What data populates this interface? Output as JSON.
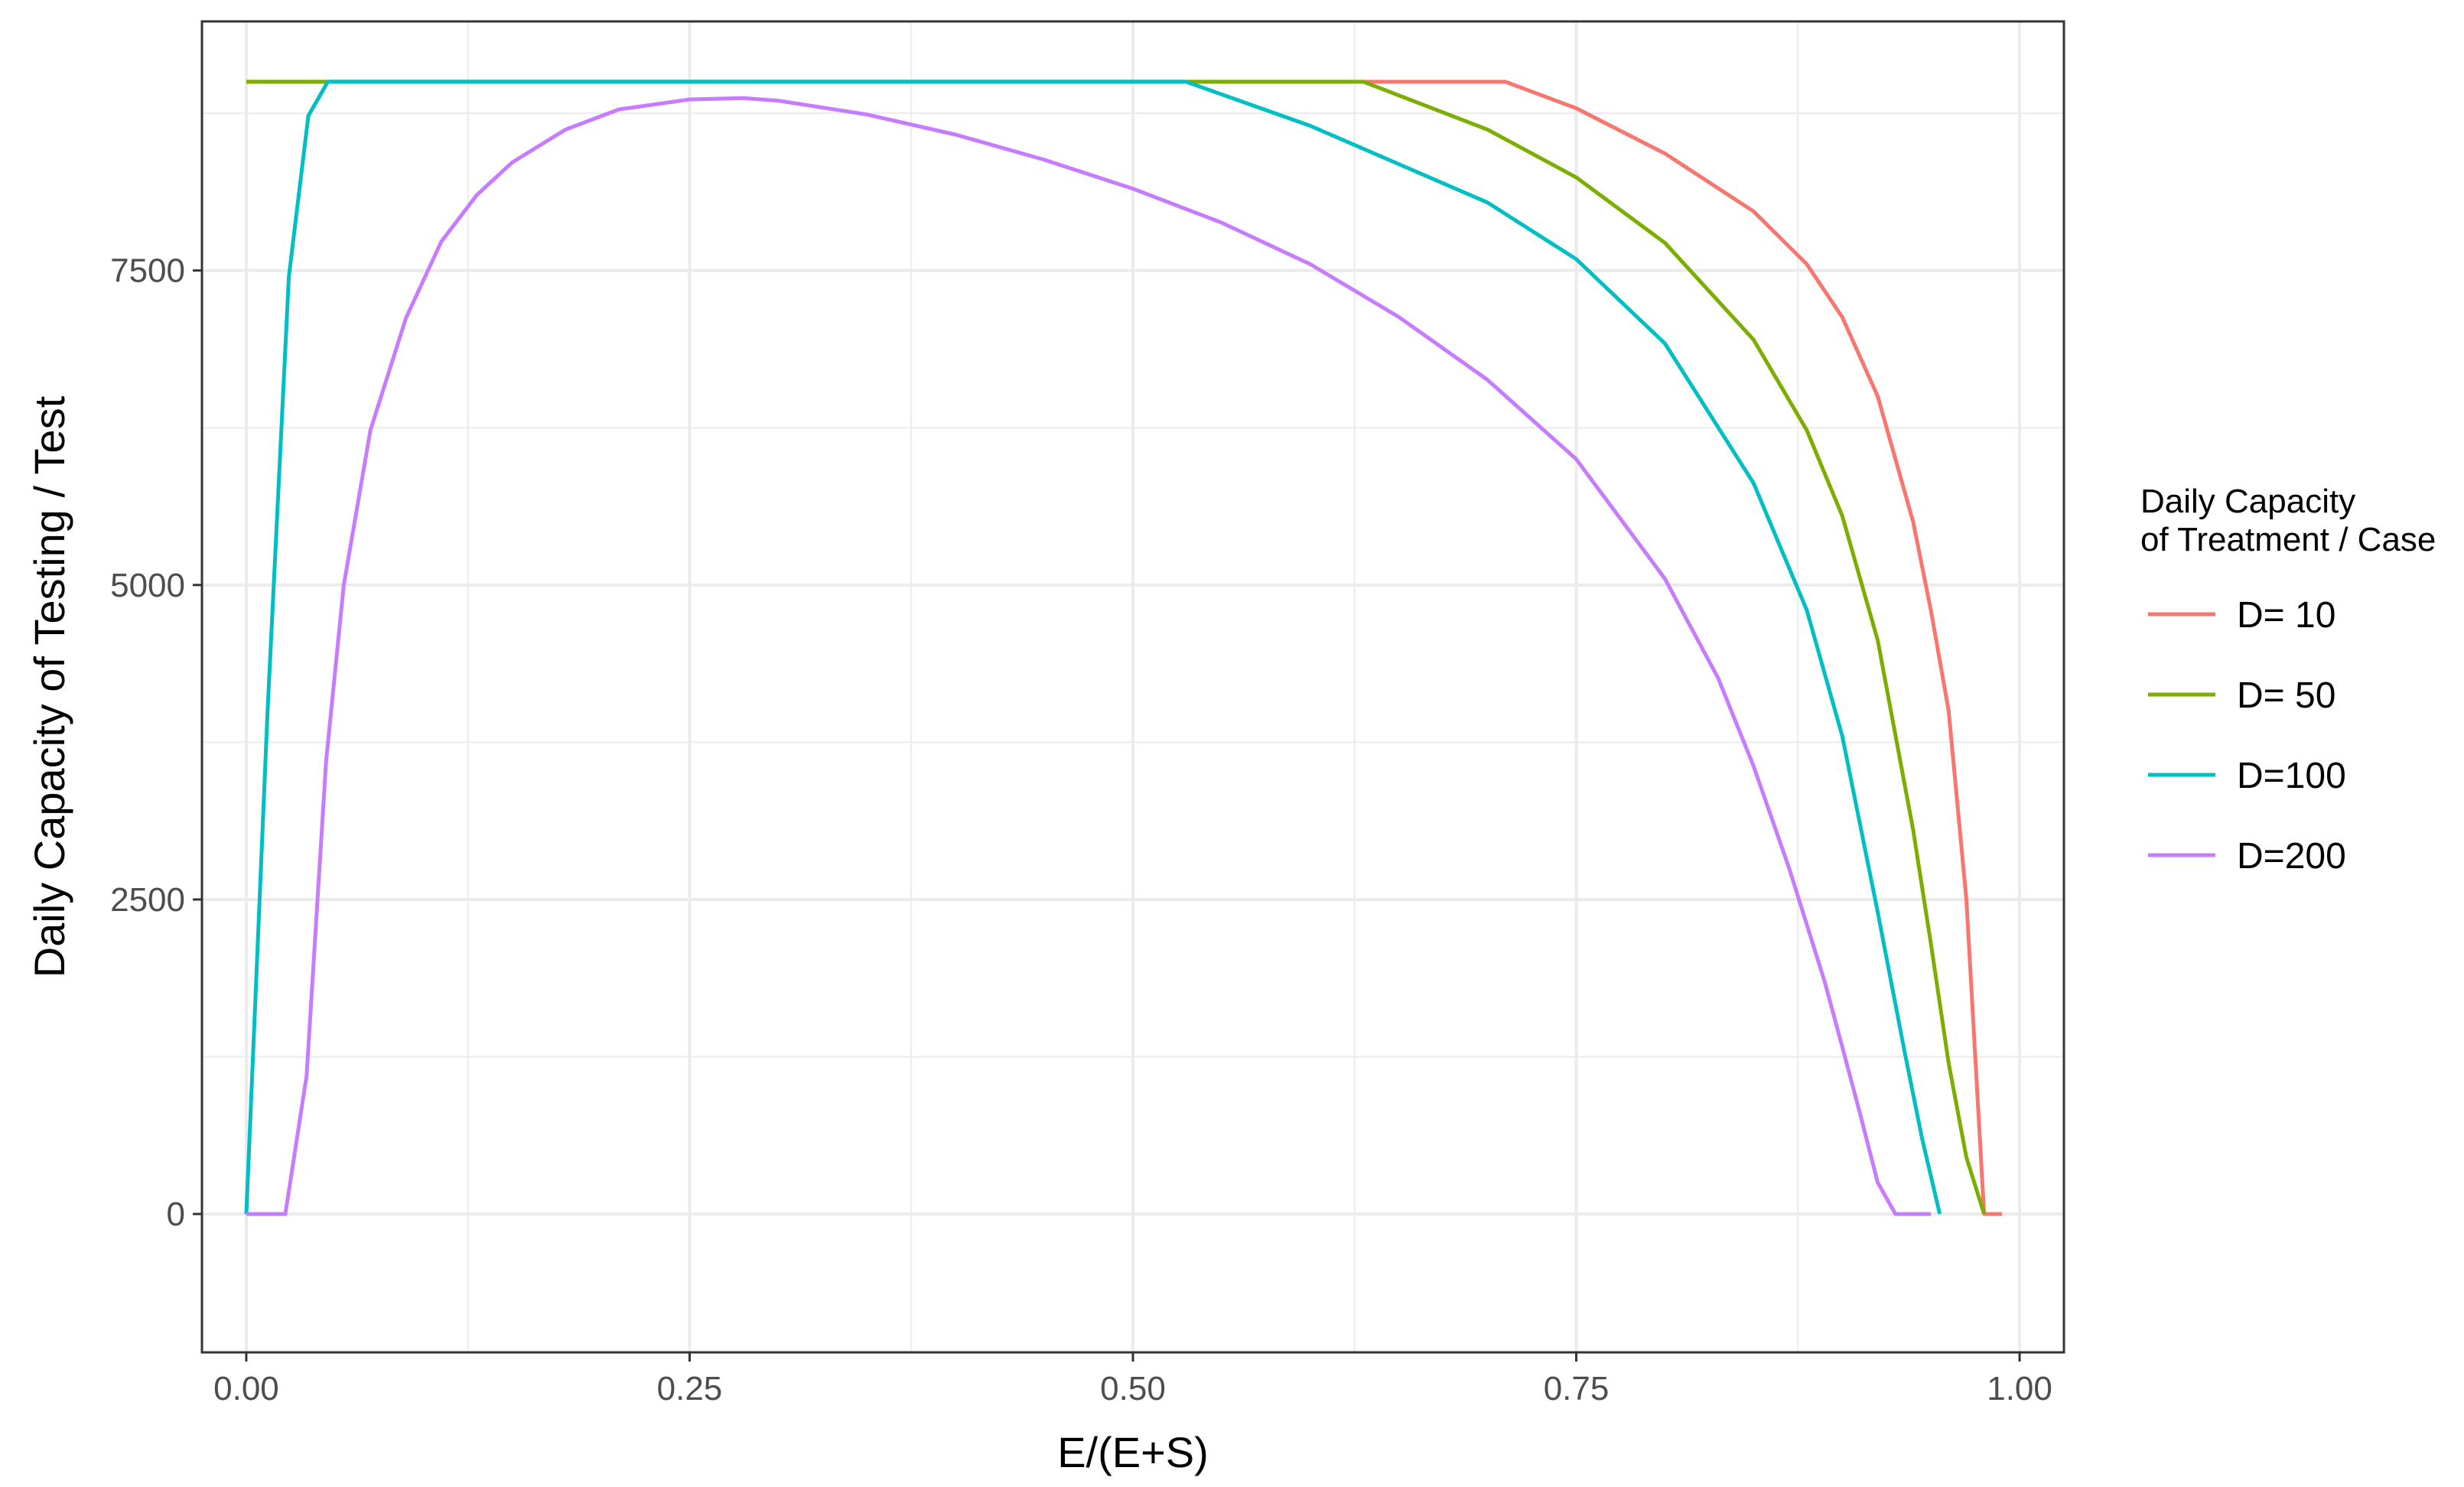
{
  "chart_data": {
    "type": "line",
    "title": "",
    "xlabel": "E/(E+S)",
    "ylabel": "Daily Capacity of Testing / Test",
    "xlim": [
      -0.025,
      1.025
    ],
    "ylim": [
      -1100,
      9480
    ],
    "x_ticks": [
      0,
      0.25,
      0.5,
      0.75,
      1
    ],
    "x_tick_labels": [
      "0.00",
      "0.25",
      "0.50",
      "0.75",
      "1.00"
    ],
    "y_ticks": [
      0,
      2500,
      5000,
      7500
    ],
    "y_tick_labels": [
      "0",
      "2500",
      "5000",
      "7500"
    ],
    "grid": true,
    "legend": {
      "title_lines": [
        "Daily Capacity",
        "of Treatment / Case"
      ],
      "placement": "right"
    },
    "series": [
      {
        "name": "D= 10",
        "color": "#f8766d",
        "x": [
          0,
          0.71,
          0.75,
          0.8,
          0.85,
          0.88,
          0.9,
          0.92,
          0.94,
          0.95,
          0.96,
          0.97,
          0.98,
          0.99
        ],
        "y": [
          9000,
          9000,
          8790,
          8430,
          7970,
          7550,
          7130,
          6500,
          5500,
          4800,
          4000,
          2500,
          0,
          0
        ]
      },
      {
        "name": "D= 50",
        "color": "#7cae00",
        "x": [
          0,
          0.63,
          0.7,
          0.75,
          0.8,
          0.85,
          0.88,
          0.9,
          0.92,
          0.94,
          0.95,
          0.96,
          0.97,
          0.98
        ],
        "y": [
          9000,
          9000,
          8620,
          8240,
          7720,
          6950,
          6230,
          5550,
          4560,
          3050,
          2150,
          1200,
          450,
          0
        ]
      },
      {
        "name": "D=100",
        "color": "#00bfc4",
        "x": [
          0,
          0.012,
          0.024,
          0.035,
          0.046,
          0.53,
          0.6,
          0.7,
          0.75,
          0.8,
          0.85,
          0.88,
          0.9,
          0.92,
          0.935,
          0.945,
          0.955
        ],
        "y": [
          0,
          4000,
          7450,
          8730,
          9000,
          9000,
          8650,
          8040,
          7590,
          6920,
          5810,
          4800,
          3800,
          2400,
          1300,
          600,
          0
        ]
      },
      {
        "name": "D=200",
        "color": "#c77cff",
        "x": [
          0,
          0.022,
          0.034,
          0.045,
          0.055,
          0.07,
          0.09,
          0.11,
          0.13,
          0.15,
          0.18,
          0.21,
          0.25,
          0.28,
          0.3,
          0.35,
          0.4,
          0.45,
          0.5,
          0.55,
          0.6,
          0.65,
          0.7,
          0.75,
          0.8,
          0.83,
          0.85,
          0.87,
          0.89,
          0.9,
          0.91,
          0.92,
          0.93,
          0.94,
          0.95
        ],
        "y": [
          0,
          0,
          1100,
          3600,
          5000,
          6230,
          7120,
          7730,
          8100,
          8360,
          8620,
          8780,
          8860,
          8870,
          8850,
          8740,
          8580,
          8380,
          8150,
          7880,
          7550,
          7130,
          6630,
          6000,
          5050,
          4260,
          3560,
          2750,
          1850,
          1330,
          800,
          250,
          0,
          0,
          0
        ]
      }
    ]
  }
}
